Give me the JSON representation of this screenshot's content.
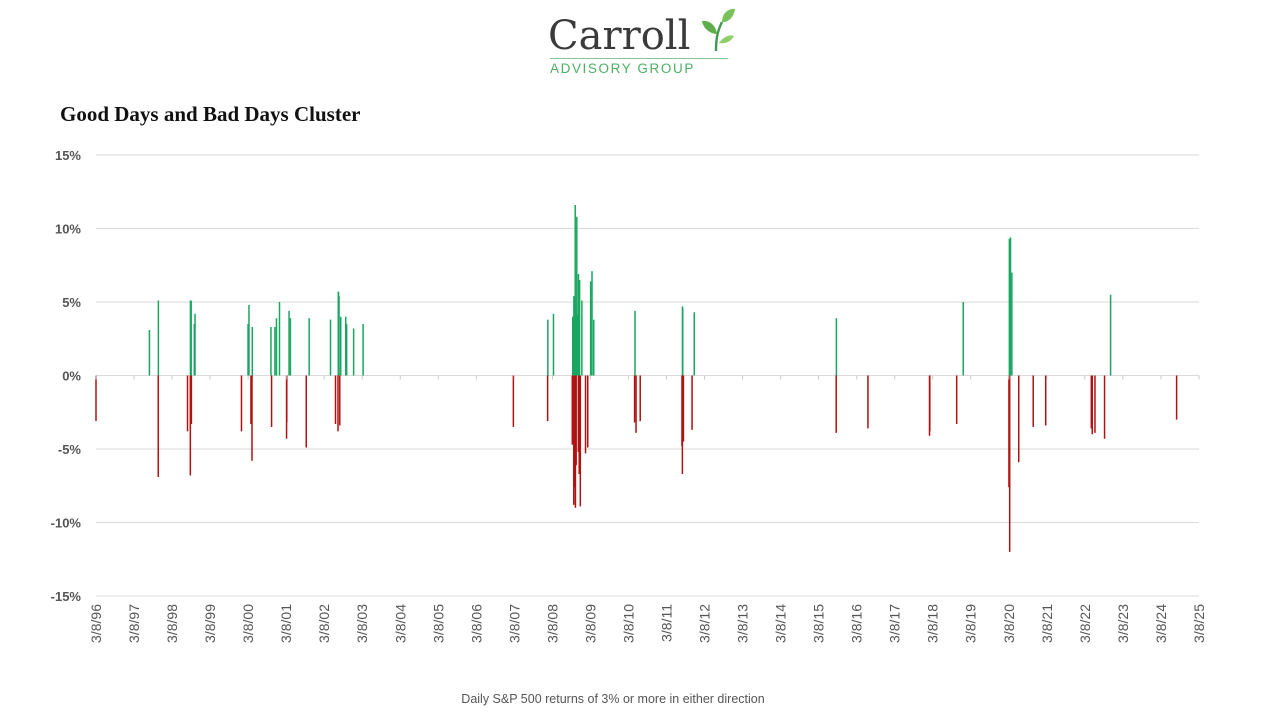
{
  "logo": {
    "name": "Carroll",
    "tagline": "ADVISORY GROUP"
  },
  "caption": "Daily S&P 500 returns of 3% or more in either direction",
  "colors": {
    "positive": "#1aa661",
    "negative": "#b01212",
    "gridline": "#dadada",
    "logo_green": "#4caf63"
  },
  "chart_data": {
    "type": "bar",
    "title": "Good Days and Bad Days Cluster",
    "xlabel": "",
    "ylabel": "",
    "ylim": [
      -15,
      15
    ],
    "xlim": [
      "3/8/96",
      "3/8/25"
    ],
    "grid": true,
    "legend": "none",
    "y_ticks": [
      "15%",
      "10%",
      "5%",
      "0%",
      "-5%",
      "-10%",
      "-15%"
    ],
    "x_ticks": [
      "3/8/96",
      "3/8/97",
      "3/8/98",
      "3/8/99",
      "3/8/00",
      "3/8/01",
      "3/8/02",
      "3/8/03",
      "3/8/04",
      "3/8/05",
      "3/8/06",
      "3/8/07",
      "3/8/08",
      "3/8/09",
      "3/8/10",
      "3/8/11",
      "3/8/12",
      "3/8/13",
      "3/8/14",
      "3/8/15",
      "3/8/16",
      "3/8/17",
      "3/8/18",
      "3/8/19",
      "3/8/20",
      "3/8/21",
      "3/8/22",
      "3/8/23",
      "3/8/24",
      "3/8/25"
    ],
    "series": [
      {
        "x": [
          "3/8/96",
          "8/3/97",
          "10/27/97",
          "10/28/97",
          "8/4/98",
          "8/31/98",
          "9/1/98",
          "9/8/98",
          "9/10/98",
          "10/8/98",
          "10/15/98",
          "1/4/00",
          "3/7/00",
          "3/16/00",
          "4/4/00",
          "4/14/00",
          "4/17/00",
          "10/13/00",
          "10/19/00",
          "11/20/00",
          "12/5/00",
          "1/3/01",
          "3/12/01",
          "3/14/01",
          "4/5/01",
          "4/18/01",
          "9/17/01",
          "10/15/01",
          "5/8/02",
          "6/25/02",
          "7/19/02",
          "7/22/02",
          "7/24/02",
          "7/29/02",
          "8/5/02",
          "8/14/02",
          "10/1/02",
          "10/10/02",
          "12/16/02",
          "3/17/03",
          "2/27/07",
          "1/22/08",
          "1/24/08",
          "3/18/08",
          "9/15/08",
          "9/17/08",
          "9/19/08",
          "9/29/08",
          "9/30/08",
          "10/6/08",
          "10/9/08",
          "10/13/08",
          "10/15/08",
          "10/20/08",
          "10/22/08",
          "10/28/08",
          "11/4/08",
          "11/12/08",
          "11/13/08",
          "11/20/08",
          "11/24/08",
          "12/1/08",
          "12/16/08",
          "1/20/09",
          "2/10/09",
          "3/10/09",
          "3/23/09",
          "4/9/09",
          "5/6/10",
          "5/10/10",
          "5/20/10",
          "6/29/10",
          "8/4/11",
          "8/8/11",
          "8/9/11",
          "8/11/11",
          "8/18/11",
          "11/9/11",
          "11/30/11",
          "8/24/15",
          "8/26/15",
          "6/24/16",
          "2/5/18",
          "2/8/18",
          "10/24/18",
          "12/26/18",
          "3/9/20",
          "3/13/20",
          "3/16/20",
          "3/24/20",
          "4/6/20",
          "6/11/20",
          "10/28/20",
          "2/25/21",
          "5/9/22",
          "5/18/22",
          "6/13/22",
          "9/13/22",
          "11/10/22",
          "8/5/24"
        ],
        "values": [
          -3.1,
          3.1,
          -6.9,
          5.1,
          -3.8,
          -6.8,
          5.1,
          5.1,
          -3.3,
          3.5,
          4.2,
          -3.8,
          3.5,
          4.8,
          -3.3,
          -5.8,
          3.3,
          3.3,
          -3.5,
          3.3,
          3.9,
          5.0,
          -4.3,
          -3.2,
          4.4,
          3.9,
          -4.9,
          3.9,
          3.8,
          -3.3,
          -3.8,
          5.7,
          5.7,
          5.4,
          -3.4,
          4.0,
          4.0,
          3.5,
          3.2,
          3.5,
          -3.5,
          -3.1,
          3.8,
          4.2,
          -4.7,
          -4.7,
          4.0,
          -8.8,
          5.4,
          -3.9,
          -7.6,
          11.6,
          -9.0,
          4.8,
          -6.1,
          10.8,
          4.1,
          -5.2,
          6.9,
          -6.7,
          6.5,
          -8.9,
          5.1,
          -5.3,
          -4.9,
          6.4,
          7.1,
          3.8,
          -3.2,
          4.4,
          -3.9,
          -3.1,
          -4.8,
          -6.7,
          4.7,
          4.6,
          -4.5,
          -3.7,
          4.3,
          -3.9,
          3.9,
          -3.6,
          -4.1,
          -3.8,
          -3.3,
          5.0,
          -7.6,
          9.3,
          -12.0,
          9.4,
          7.0,
          -5.9,
          -3.5,
          -3.4,
          -3.6,
          -4.0,
          -3.9,
          -4.3,
          5.5,
          -3.0
        ]
      }
    ]
  }
}
